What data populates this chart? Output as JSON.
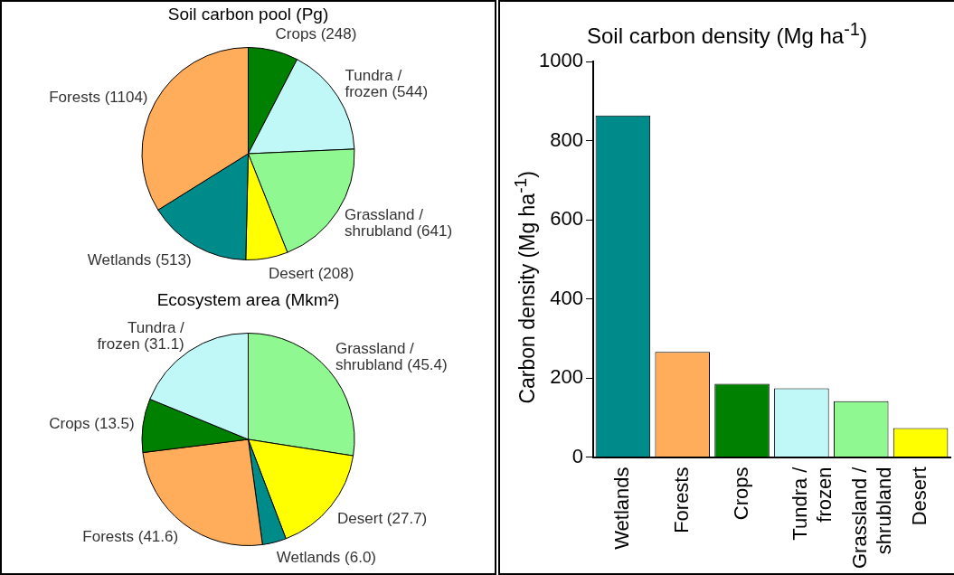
{
  "chart_data": [
    {
      "type": "pie",
      "title": "Soil carbon pool (Pg)",
      "categories": [
        "Crops",
        "Tundra / frozen",
        "Grassland / shrubland",
        "Desert",
        "Wetlands",
        "Forests"
      ],
      "values": [
        248,
        544,
        641,
        208,
        513,
        1104
      ],
      "colors": [
        "#008000",
        "#c0f8f8",
        "#90f890",
        "#ffff00",
        "#008b8b",
        "#ffad5a"
      ],
      "value_labels": [
        "(248)",
        "(544)",
        "(641)",
        "(208)",
        "(513)",
        "(1104)"
      ]
    },
    {
      "type": "pie",
      "title": "Ecosystem area (Mkm²)",
      "categories": [
        "Grassland / shrubland",
        "Desert",
        "Wetlands",
        "Forests",
        "Crops",
        "Tundra / frozen"
      ],
      "values": [
        45.4,
        27.7,
        6.0,
        41.6,
        13.5,
        31.1
      ],
      "colors": [
        "#90f890",
        "#ffff00",
        "#008b8b",
        "#ffad5a",
        "#008000",
        "#c0f8f8"
      ],
      "value_labels": [
        "(45.4)",
        "(27.7)",
        "(6.0)",
        "(41.6)",
        "(13.5)",
        "(31.1)"
      ]
    },
    {
      "type": "bar",
      "title": "Soil carbon density (Mg ha$^{-1}$)",
      "ylabel": "Carbon density (Mg ha$^{-1}$)",
      "categories": [
        "Wetlands",
        "Forests",
        "Crops",
        "Tundra / frozen",
        "Grassland / shrubland",
        "Desert"
      ],
      "values": [
        864,
        266,
        185,
        174,
        141,
        73
      ],
      "colors": [
        "#008b8b",
        "#ffad5a",
        "#008000",
        "#c0f8f8",
        "#90f890",
        "#ffff00"
      ],
      "ylim": [
        0,
        1000
      ],
      "yticks": [
        0,
        200,
        400,
        600,
        800,
        1000
      ],
      "grid": false
    }
  ]
}
